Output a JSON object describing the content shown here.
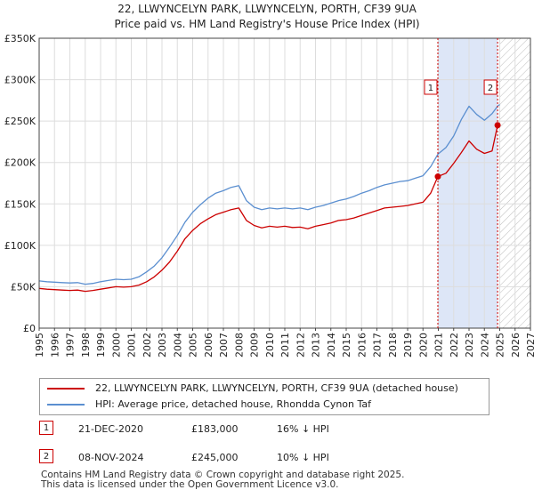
{
  "header": {
    "title": "22, LLWYNCELYN PARK, LLWYNCELYN, PORTH, CF39 9UA",
    "subtitle": "Price paid vs. HM Land Registry's House Price Index (HPI)"
  },
  "chart_data": {
    "type": "line",
    "title": "22, LLWYNCELYN PARK, LLWYNCELYN, PORTH, CF39 9UA",
    "subtitle": "Price paid vs. HM Land Registry's House Price Index (HPI)",
    "xlabel": "",
    "ylabel": "",
    "xlim": [
      1995,
      2027
    ],
    "ylim": [
      0,
      350000
    ],
    "x_ticks": [
      1995,
      1996,
      1997,
      1998,
      1999,
      2000,
      2001,
      2002,
      2003,
      2004,
      2005,
      2006,
      2007,
      2008,
      2009,
      2010,
      2011,
      2012,
      2013,
      2014,
      2015,
      2016,
      2017,
      2018,
      2019,
      2020,
      2021,
      2022,
      2023,
      2024,
      2025,
      2026,
      2027
    ],
    "x_tick_labels": [
      "1995",
      "1996",
      "1997",
      "1998",
      "1999",
      "2000",
      "2001",
      "2002",
      "2003",
      "2004",
      "2005",
      "2006",
      "2007",
      "2008",
      "2009",
      "2010",
      "2011",
      "2012",
      "2013",
      "2014",
      "2015",
      "2016",
      "2017",
      "2018",
      "2019",
      "2020",
      "2021",
      "2022",
      "2023",
      "2024",
      "2025",
      "2026",
      "2027"
    ],
    "y_ticks": [
      0,
      50000,
      100000,
      150000,
      200000,
      250000,
      300000,
      350000
    ],
    "y_tick_labels": [
      "£0",
      "£50K",
      "£100K",
      "£150K",
      "£200K",
      "£250K",
      "£300K",
      "£350K"
    ],
    "grid": true,
    "shaded_period": [
      2020.97,
      2024.86
    ],
    "hatched_from": 2025.0,
    "series": [
      {
        "name": "22, LLWYNCELYN PARK, LLWYNCELYN, PORTH, CF39 9UA (detached house)",
        "color": "#cc0000",
        "x": [
          1995.0,
          1995.5,
          1996.0,
          1996.5,
          1997.0,
          1997.5,
          1998.0,
          1998.5,
          1999.0,
          1999.5,
          2000.0,
          2000.5,
          2001.0,
          2001.5,
          2002.0,
          2002.5,
          2003.0,
          2003.5,
          2004.0,
          2004.5,
          2005.0,
          2005.5,
          2006.0,
          2006.5,
          2007.0,
          2007.5,
          2008.0,
          2008.5,
          2009.0,
          2009.5,
          2010.0,
          2010.5,
          2011.0,
          2011.5,
          2012.0,
          2012.5,
          2013.0,
          2013.5,
          2014.0,
          2014.5,
          2015.0,
          2015.5,
          2016.0,
          2016.5,
          2017.0,
          2017.5,
          2018.0,
          2018.5,
          2019.0,
          2019.5,
          2020.0,
          2020.5,
          2020.97,
          2021.5,
          2022.0,
          2022.5,
          2023.0,
          2023.5,
          2024.0,
          2024.5,
          2024.86,
          2025.0
        ],
        "values": [
          48000,
          47000,
          46500,
          46000,
          45500,
          46000,
          44500,
          45500,
          47000,
          48500,
          50000,
          49500,
          50000,
          52000,
          56000,
          62000,
          70000,
          80000,
          93000,
          108000,
          118000,
          126000,
          132000,
          137000,
          140000,
          143000,
          145000,
          130000,
          124000,
          121000,
          123000,
          122000,
          123000,
          121500,
          122000,
          120000,
          123000,
          125000,
          127000,
          130000,
          131000,
          133000,
          136000,
          139000,
          142000,
          145000,
          146000,
          147000,
          148000,
          150000,
          152000,
          163000,
          183000,
          187000,
          199000,
          212000,
          226000,
          216000,
          211000,
          214000,
          245000,
          244000
        ]
      },
      {
        "name": "HPI: Average price, detached house, Rhondda Cynon Taf",
        "color": "#5b8fd0",
        "x": [
          1995.0,
          1995.5,
          1996.0,
          1996.5,
          1997.0,
          1997.5,
          1998.0,
          1998.5,
          1999.0,
          1999.5,
          2000.0,
          2000.5,
          2001.0,
          2001.5,
          2002.0,
          2002.5,
          2003.0,
          2003.5,
          2004.0,
          2004.5,
          2005.0,
          2005.5,
          2006.0,
          2006.5,
          2007.0,
          2007.5,
          2008.0,
          2008.5,
          2009.0,
          2009.5,
          2010.0,
          2010.5,
          2011.0,
          2011.5,
          2012.0,
          2012.5,
          2013.0,
          2013.5,
          2014.0,
          2014.5,
          2015.0,
          2015.5,
          2016.0,
          2016.5,
          2017.0,
          2017.5,
          2018.0,
          2018.5,
          2019.0,
          2019.5,
          2020.0,
          2020.5,
          2020.97,
          2021.5,
          2022.0,
          2022.5,
          2023.0,
          2023.5,
          2024.0,
          2024.5,
          2024.86,
          2025.0
        ],
        "values": [
          57000,
          56000,
          55500,
          55000,
          54500,
          55000,
          53000,
          54000,
          56000,
          57500,
          59000,
          58500,
          59000,
          62000,
          68000,
          75000,
          85000,
          98000,
          112000,
          128000,
          140000,
          149000,
          157000,
          163000,
          166000,
          170000,
          172000,
          154000,
          146000,
          143000,
          145000,
          144000,
          145000,
          144000,
          145000,
          143000,
          146000,
          148000,
          151000,
          154000,
          156000,
          159000,
          163000,
          166000,
          170000,
          173000,
          175000,
          177000,
          178000,
          181000,
          184000,
          195000,
          210000,
          218000,
          232000,
          252000,
          268000,
          258000,
          251000,
          259000,
          268000,
          270000
        ]
      }
    ],
    "annotations": [
      {
        "label": "1",
        "x": 2020.97,
        "value": 183000
      },
      {
        "label": "2",
        "x": 2024.86,
        "value": 245000
      }
    ]
  },
  "legend": {
    "items": [
      {
        "label": "22, LLWYNCELYN PARK, LLWYNCELYN, PORTH, CF39 9UA (detached house)",
        "color": "#cc0000"
      },
      {
        "label": "HPI: Average price, detached house, Rhondda Cynon Taf",
        "color": "#5b8fd0"
      }
    ]
  },
  "transactions": [
    {
      "num": "1",
      "date": "21-DEC-2020",
      "price": "£183,000",
      "hpi": "16% ↓ HPI"
    },
    {
      "num": "2",
      "date": "08-NOV-2024",
      "price": "£245,000",
      "hpi": "10% ↓ HPI"
    }
  ],
  "footer": {
    "line1": "Contains HM Land Registry data © Crown copyright and database right 2025.",
    "line2": "This data is licensed under the Open Government Licence v3.0."
  },
  "colors": {
    "accent_red": "#cc0000",
    "hpi_blue": "#5b8fd0",
    "shade": "#dde6f7"
  }
}
